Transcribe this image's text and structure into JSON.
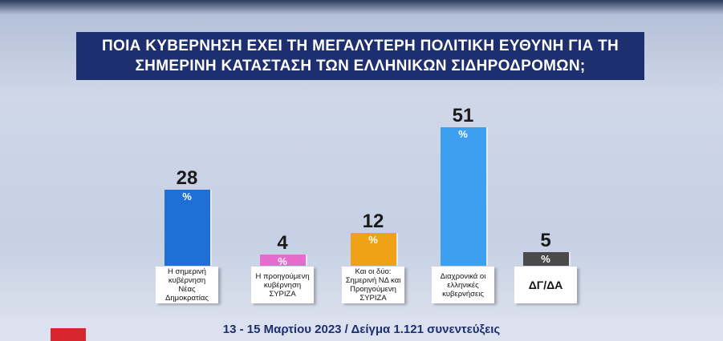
{
  "chart_data": {
    "type": "bar",
    "title": "ΠΟΙΑ ΚΥΒΕΡΝΗΣΗ ΕΧΕΙ ΤΗ ΜΕΓΑΛΥΤΕΡΗ ΠΟΛΙΤΙΚΗ ΕΥΘΥΝΗ ΓΙΑ ΤΗ ΣΗΜΕΡΙΝΗ ΚΑΤΑΣΤΑΣΗ ΤΩΝ ΕΛΛΗΝΙΚΩΝ ΣΙΔΗΡΟΔΡΟΜΩΝ;",
    "categories": [
      "Η σημερινή κυβέρνηση Νέας Δημοκρατίας",
      "Η προηγούμενη κυβέρνηση ΣΥΡΙΖΑ",
      "Και οι δύο: Σημερινή ΝΔ και Προηγούμενη ΣΥΡΙΖΑ",
      "Διαχρονικά οι ελληνικές κυβερνήσεις",
      "ΔΓ/ΔΑ"
    ],
    "values": [
      28,
      4,
      12,
      51,
      5
    ],
    "value_unit": "%",
    "colors": [
      "#1f6fd6",
      "#e46ccc",
      "#f0a216",
      "#3c9ff0",
      "#4a4a4a"
    ],
    "note": "13 - 15 Μαρτίου 2023 / Δείγμα 1.121 συνεντεύξεις"
  }
}
